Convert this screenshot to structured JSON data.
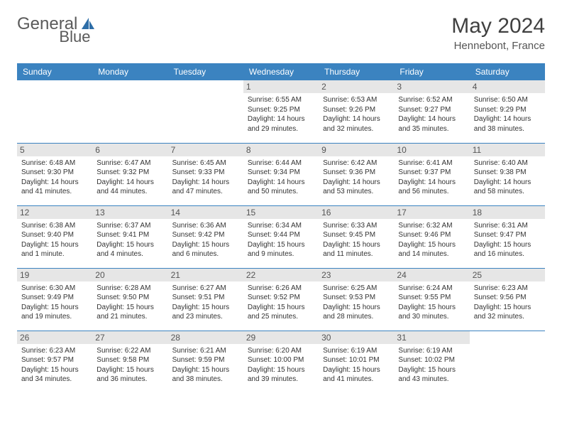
{
  "brand": {
    "part1": "General",
    "part2": "Blue"
  },
  "title": {
    "month_year": "May 2024",
    "location": "Hennebont, France"
  },
  "calendar": {
    "type": "table",
    "header_bg": "#3b83c0",
    "header_fg": "#ffffff",
    "row_border_color": "#3b83c0",
    "daynum_bg": "#e6e6e6",
    "background_color": "#ffffff",
    "text_color": "#333333",
    "columns": [
      "Sunday",
      "Monday",
      "Tuesday",
      "Wednesday",
      "Thursday",
      "Friday",
      "Saturday"
    ],
    "col_width_pct": 14.28,
    "header_fontsize": 12,
    "body_fontsize": 10,
    "weeks": [
      [
        {
          "day": "",
          "sunrise": "",
          "sunset": "",
          "daylight": ""
        },
        {
          "day": "",
          "sunrise": "",
          "sunset": "",
          "daylight": ""
        },
        {
          "day": "",
          "sunrise": "",
          "sunset": "",
          "daylight": ""
        },
        {
          "day": "1",
          "sunrise": "Sunrise: 6:55 AM",
          "sunset": "Sunset: 9:25 PM",
          "daylight": "Daylight: 14 hours and 29 minutes."
        },
        {
          "day": "2",
          "sunrise": "Sunrise: 6:53 AM",
          "sunset": "Sunset: 9:26 PM",
          "daylight": "Daylight: 14 hours and 32 minutes."
        },
        {
          "day": "3",
          "sunrise": "Sunrise: 6:52 AM",
          "sunset": "Sunset: 9:27 PM",
          "daylight": "Daylight: 14 hours and 35 minutes."
        },
        {
          "day": "4",
          "sunrise": "Sunrise: 6:50 AM",
          "sunset": "Sunset: 9:29 PM",
          "daylight": "Daylight: 14 hours and 38 minutes."
        }
      ],
      [
        {
          "day": "5",
          "sunrise": "Sunrise: 6:48 AM",
          "sunset": "Sunset: 9:30 PM",
          "daylight": "Daylight: 14 hours and 41 minutes."
        },
        {
          "day": "6",
          "sunrise": "Sunrise: 6:47 AM",
          "sunset": "Sunset: 9:32 PM",
          "daylight": "Daylight: 14 hours and 44 minutes."
        },
        {
          "day": "7",
          "sunrise": "Sunrise: 6:45 AM",
          "sunset": "Sunset: 9:33 PM",
          "daylight": "Daylight: 14 hours and 47 minutes."
        },
        {
          "day": "8",
          "sunrise": "Sunrise: 6:44 AM",
          "sunset": "Sunset: 9:34 PM",
          "daylight": "Daylight: 14 hours and 50 minutes."
        },
        {
          "day": "9",
          "sunrise": "Sunrise: 6:42 AM",
          "sunset": "Sunset: 9:36 PM",
          "daylight": "Daylight: 14 hours and 53 minutes."
        },
        {
          "day": "10",
          "sunrise": "Sunrise: 6:41 AM",
          "sunset": "Sunset: 9:37 PM",
          "daylight": "Daylight: 14 hours and 56 minutes."
        },
        {
          "day": "11",
          "sunrise": "Sunrise: 6:40 AM",
          "sunset": "Sunset: 9:38 PM",
          "daylight": "Daylight: 14 hours and 58 minutes."
        }
      ],
      [
        {
          "day": "12",
          "sunrise": "Sunrise: 6:38 AM",
          "sunset": "Sunset: 9:40 PM",
          "daylight": "Daylight: 15 hours and 1 minute."
        },
        {
          "day": "13",
          "sunrise": "Sunrise: 6:37 AM",
          "sunset": "Sunset: 9:41 PM",
          "daylight": "Daylight: 15 hours and 4 minutes."
        },
        {
          "day": "14",
          "sunrise": "Sunrise: 6:36 AM",
          "sunset": "Sunset: 9:42 PM",
          "daylight": "Daylight: 15 hours and 6 minutes."
        },
        {
          "day": "15",
          "sunrise": "Sunrise: 6:34 AM",
          "sunset": "Sunset: 9:44 PM",
          "daylight": "Daylight: 15 hours and 9 minutes."
        },
        {
          "day": "16",
          "sunrise": "Sunrise: 6:33 AM",
          "sunset": "Sunset: 9:45 PM",
          "daylight": "Daylight: 15 hours and 11 minutes."
        },
        {
          "day": "17",
          "sunrise": "Sunrise: 6:32 AM",
          "sunset": "Sunset: 9:46 PM",
          "daylight": "Daylight: 15 hours and 14 minutes."
        },
        {
          "day": "18",
          "sunrise": "Sunrise: 6:31 AM",
          "sunset": "Sunset: 9:47 PM",
          "daylight": "Daylight: 15 hours and 16 minutes."
        }
      ],
      [
        {
          "day": "19",
          "sunrise": "Sunrise: 6:30 AM",
          "sunset": "Sunset: 9:49 PM",
          "daylight": "Daylight: 15 hours and 19 minutes."
        },
        {
          "day": "20",
          "sunrise": "Sunrise: 6:28 AM",
          "sunset": "Sunset: 9:50 PM",
          "daylight": "Daylight: 15 hours and 21 minutes."
        },
        {
          "day": "21",
          "sunrise": "Sunrise: 6:27 AM",
          "sunset": "Sunset: 9:51 PM",
          "daylight": "Daylight: 15 hours and 23 minutes."
        },
        {
          "day": "22",
          "sunrise": "Sunrise: 6:26 AM",
          "sunset": "Sunset: 9:52 PM",
          "daylight": "Daylight: 15 hours and 25 minutes."
        },
        {
          "day": "23",
          "sunrise": "Sunrise: 6:25 AM",
          "sunset": "Sunset: 9:53 PM",
          "daylight": "Daylight: 15 hours and 28 minutes."
        },
        {
          "day": "24",
          "sunrise": "Sunrise: 6:24 AM",
          "sunset": "Sunset: 9:55 PM",
          "daylight": "Daylight: 15 hours and 30 minutes."
        },
        {
          "day": "25",
          "sunrise": "Sunrise: 6:23 AM",
          "sunset": "Sunset: 9:56 PM",
          "daylight": "Daylight: 15 hours and 32 minutes."
        }
      ],
      [
        {
          "day": "26",
          "sunrise": "Sunrise: 6:23 AM",
          "sunset": "Sunset: 9:57 PM",
          "daylight": "Daylight: 15 hours and 34 minutes."
        },
        {
          "day": "27",
          "sunrise": "Sunrise: 6:22 AM",
          "sunset": "Sunset: 9:58 PM",
          "daylight": "Daylight: 15 hours and 36 minutes."
        },
        {
          "day": "28",
          "sunrise": "Sunrise: 6:21 AM",
          "sunset": "Sunset: 9:59 PM",
          "daylight": "Daylight: 15 hours and 38 minutes."
        },
        {
          "day": "29",
          "sunrise": "Sunrise: 6:20 AM",
          "sunset": "Sunset: 10:00 PM",
          "daylight": "Daylight: 15 hours and 39 minutes."
        },
        {
          "day": "30",
          "sunrise": "Sunrise: 6:19 AM",
          "sunset": "Sunset: 10:01 PM",
          "daylight": "Daylight: 15 hours and 41 minutes."
        },
        {
          "day": "31",
          "sunrise": "Sunrise: 6:19 AM",
          "sunset": "Sunset: 10:02 PM",
          "daylight": "Daylight: 15 hours and 43 minutes."
        },
        {
          "day": "",
          "sunrise": "",
          "sunset": "",
          "daylight": ""
        }
      ]
    ]
  }
}
